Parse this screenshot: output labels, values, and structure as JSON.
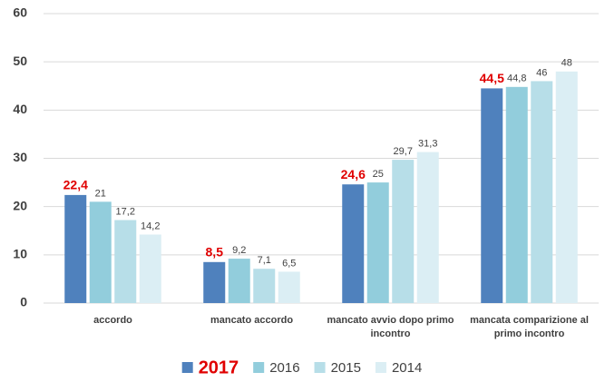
{
  "chart_data": {
    "type": "bar",
    "categories": [
      "accordo",
      "mancato accordo",
      "mancato avvio dopo primo incontro",
      "mancata comparizione al primo incontro"
    ],
    "series": [
      {
        "name": "2017",
        "color": "#4f81bd",
        "label_color": "#e00000",
        "values": [
          22.4,
          8.5,
          24.6,
          44.5
        ],
        "value_labels": [
          "22,4",
          "8,5",
          "24,6",
          "44,5"
        ]
      },
      {
        "name": "2016",
        "color": "#92cddc",
        "values": [
          21,
          9.2,
          25,
          44.8
        ],
        "value_labels": [
          "21",
          "9,2",
          "25",
          "44,8"
        ]
      },
      {
        "name": "2015",
        "color": "#b7dee8",
        "values": [
          17.2,
          7.1,
          29.7,
          46
        ],
        "value_labels": [
          "17,2",
          "7,1",
          "29,7",
          "46"
        ]
      },
      {
        "name": "2014",
        "color": "#dbeef4",
        "values": [
          14.2,
          6.5,
          31.3,
          48
        ],
        "value_labels": [
          "14,2",
          "6,5",
          "31,3",
          "48"
        ]
      }
    ],
    "ylim": [
      0,
      60
    ],
    "yticks": [
      0,
      10,
      20,
      30,
      40,
      50,
      60
    ],
    "grid": true,
    "legend": "bottom"
  }
}
